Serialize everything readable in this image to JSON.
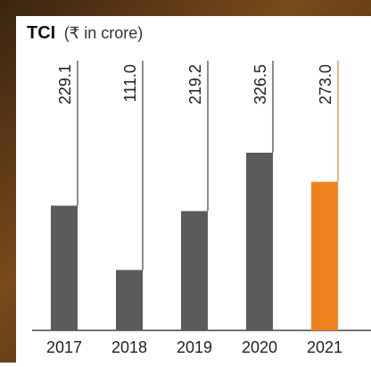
{
  "chart_data": {
    "type": "bar",
    "title": "TCI",
    "subtitle": "(₹ in crore)",
    "categories": [
      "2017",
      "2018",
      "2019",
      "2020",
      "2021"
    ],
    "values": [
      229.1,
      111.0,
      219.2,
      326.5,
      273.0
    ],
    "value_labels": [
      "229.1",
      "111.0",
      "219.2",
      "326.5",
      "273.0"
    ],
    "colors": [
      "#5b5b5d",
      "#5b5b5d",
      "#5b5b5d",
      "#5b5b5d",
      "#f0821e"
    ]
  }
}
